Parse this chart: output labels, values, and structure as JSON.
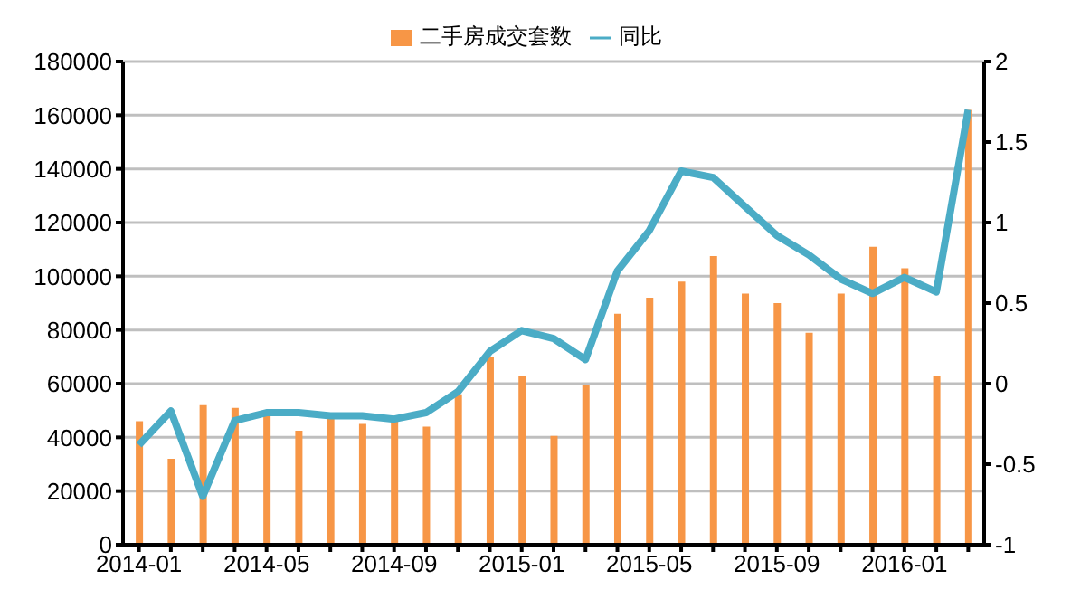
{
  "chart_data": {
    "type": "bar",
    "categories": [
      "2014-01",
      null,
      null,
      null,
      "2014-05",
      null,
      null,
      null,
      "2014-09",
      null,
      null,
      null,
      "2015-01",
      null,
      null,
      null,
      "2015-05",
      null,
      null,
      null,
      "2015-09",
      null,
      null,
      null,
      "2016-01",
      null,
      null
    ],
    "series": [
      {
        "name": "二手房成交套数",
        "color": "#f79646",
        "values": [
          46000,
          32000,
          52000,
          51000,
          48000,
          42500,
          47000,
          45000,
          47000,
          44000,
          56000,
          70000,
          63000,
          40500,
          59500,
          86000,
          92000,
          98000,
          107500,
          93500,
          90000,
          79000,
          93500,
          111000,
          103000,
          63000,
          162000
        ]
      },
      {
        "name": "同比",
        "type": "line",
        "axis": "y2",
        "color": "#4bacc6",
        "values": [
          -0.38,
          -0.17,
          -0.7,
          -0.23,
          -0.18,
          -0.18,
          -0.2,
          -0.2,
          -0.22,
          -0.18,
          -0.05,
          0.2,
          0.33,
          0.28,
          0.15,
          0.7,
          0.95,
          1.32,
          1.28,
          1.1,
          0.92,
          0.8,
          0.65,
          0.56,
          0.66,
          0.57,
          1.7
        ]
      }
    ],
    "ylim": [
      0,
      180000
    ],
    "yticks": [
      0,
      20000,
      40000,
      60000,
      80000,
      100000,
      120000,
      140000,
      160000,
      180000
    ],
    "y2lim": [
      -1,
      2
    ],
    "y2ticks": [
      -1,
      -0.5,
      0,
      0.5,
      1,
      1.5,
      2
    ],
    "grid": "y",
    "legend": "top",
    "marker": "none",
    "line_style": "solid"
  }
}
